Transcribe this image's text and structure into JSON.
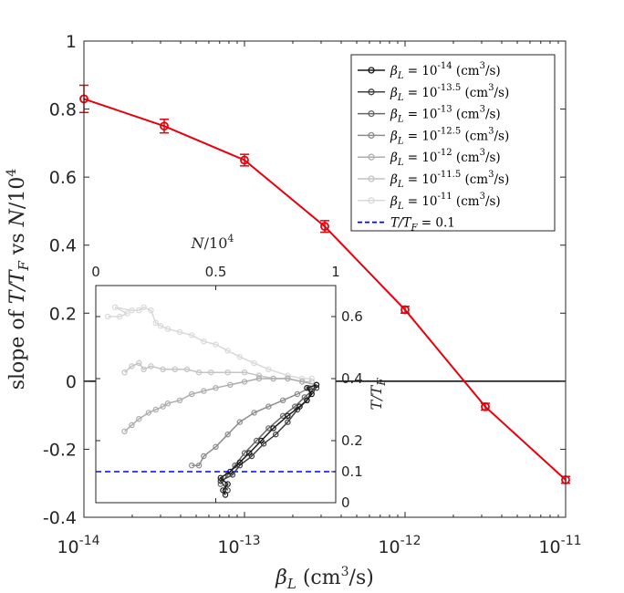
{
  "chart_data": [
    {
      "id": "main",
      "type": "line",
      "title": "",
      "xlabel": "β_L (cm³/s)",
      "ylabel": "slope of T/T_F vs N/10⁴",
      "xscale": "log",
      "xlim_exp": [
        -14,
        -11
      ],
      "ylim": [
        -0.4,
        1
      ],
      "x_ticks": [
        {
          "exp": -14,
          "label": "10",
          "sup": "-14"
        },
        {
          "exp": -13,
          "label": "10",
          "sup": "-13"
        },
        {
          "exp": -12,
          "label": "10",
          "sup": "-12"
        },
        {
          "exp": -11,
          "label": "10",
          "sup": "-11"
        }
      ],
      "y_ticks": [
        {
          "value": -0.4,
          "label": "-0.4"
        },
        {
          "value": -0.2,
          "label": "-0.2"
        },
        {
          "value": 0,
          "label": "0"
        },
        {
          "value": 0.2,
          "label": "0.2"
        },
        {
          "value": 0.4,
          "label": "0.4"
        },
        {
          "value": 0.6,
          "label": "0.6"
        },
        {
          "value": 0.8,
          "label": "0.8"
        },
        {
          "value": 1,
          "label": "1"
        }
      ],
      "zero_line": 0,
      "series": [
        {
          "name": "slope",
          "color": "#e8000b",
          "x_exp": [
            -14,
            -13.5,
            -13,
            -12.5,
            -12,
            -11.5,
            -11
          ],
          "values": [
            0.83,
            0.75,
            0.65,
            0.455,
            0.21,
            -0.075,
            -0.29
          ],
          "errors": [
            0.04,
            0.02,
            0.017,
            0.017,
            0.01,
            0.01,
            0.01
          ]
        }
      ]
    },
    {
      "id": "inset",
      "type": "line",
      "xlabel": "N/10⁴",
      "ylabel": "T/T_F",
      "xlim": [
        0,
        1
      ],
      "ylim": [
        0,
        0.7
      ],
      "x_ticks": [
        {
          "value": 0,
          "label": "0"
        },
        {
          "value": 0.5,
          "label": "0.5"
        },
        {
          "value": 1,
          "label": "1"
        }
      ],
      "y_ticks": [
        {
          "value": 0,
          "label": "0"
        },
        {
          "value": 0.1,
          "label": "0.1"
        },
        {
          "value": 0.2,
          "label": "0.2"
        },
        {
          "value": 0.4,
          "label": "0.4"
        },
        {
          "value": 0.6,
          "label": "0.6"
        }
      ],
      "reference_line": {
        "value": 0.1,
        "label": "T/T_F = 0.1",
        "color": "#0000ff"
      },
      "series": [
        {
          "name": "β_L = 10^-14 (cm³/s)",
          "color": "#1a1a1a",
          "points": [
            [
              0.54,
              0.025
            ],
            [
              0.53,
              0.04
            ],
            [
              0.55,
              0.06
            ],
            [
              0.52,
              0.08
            ],
            [
              0.56,
              0.1
            ],
            [
              0.6,
              0.13
            ],
            [
              0.64,
              0.16
            ],
            [
              0.69,
              0.2
            ],
            [
              0.74,
              0.24
            ],
            [
              0.8,
              0.28
            ],
            [
              0.85,
              0.31
            ],
            [
              0.88,
              0.33
            ],
            [
              0.9,
              0.35
            ],
            [
              0.88,
              0.37
            ],
            [
              0.92,
              0.38
            ]
          ]
        },
        {
          "name": "β_L = 10^-13.5 (cm³/s)",
          "color": "#404040",
          "points": [
            [
              0.55,
              0.04
            ],
            [
              0.52,
              0.07
            ],
            [
              0.57,
              0.09
            ],
            [
              0.6,
              0.12
            ],
            [
              0.65,
              0.15
            ],
            [
              0.7,
              0.19
            ],
            [
              0.75,
              0.22
            ],
            [
              0.8,
              0.26
            ],
            [
              0.84,
              0.3
            ],
            [
              0.88,
              0.33
            ],
            [
              0.9,
              0.36
            ],
            [
              0.92,
              0.37
            ]
          ]
        },
        {
          "name": "β_L = 10^-13 (cm³/s)",
          "color": "#666666",
          "points": [
            [
              0.52,
              0.06
            ],
            [
              0.55,
              0.09
            ],
            [
              0.58,
              0.12
            ],
            [
              0.62,
              0.16
            ],
            [
              0.67,
              0.2
            ],
            [
              0.72,
              0.24
            ],
            [
              0.78,
              0.28
            ],
            [
              0.83,
              0.31
            ],
            [
              0.87,
              0.34
            ],
            [
              0.9,
              0.36
            ],
            [
              0.92,
              0.38
            ]
          ]
        },
        {
          "name": "β_L = 10^-12.5 (cm³/s)",
          "color": "#8c8c8c",
          "points": [
            [
              0.4,
              0.12
            ],
            [
              0.43,
              0.12
            ],
            [
              0.45,
              0.15
            ],
            [
              0.5,
              0.18
            ],
            [
              0.55,
              0.22
            ],
            [
              0.6,
              0.26
            ],
            [
              0.66,
              0.29
            ],
            [
              0.72,
              0.31
            ],
            [
              0.78,
              0.33
            ],
            [
              0.84,
              0.35
            ],
            [
              0.89,
              0.37
            ],
            [
              0.92,
              0.38
            ]
          ]
        },
        {
          "name": "β_L = 10^-12 (cm³/s)",
          "color": "#adadad",
          "points": [
            [
              0.12,
              0.23
            ],
            [
              0.15,
              0.25
            ],
            [
              0.18,
              0.27
            ],
            [
              0.22,
              0.29
            ],
            [
              0.25,
              0.3
            ],
            [
              0.28,
              0.31
            ],
            [
              0.3,
              0.32
            ],
            [
              0.35,
              0.33
            ],
            [
              0.4,
              0.35
            ],
            [
              0.45,
              0.36
            ],
            [
              0.5,
              0.37
            ],
            [
              0.56,
              0.38
            ],
            [
              0.62,
              0.39
            ],
            [
              0.68,
              0.4
            ],
            [
              0.74,
              0.4
            ],
            [
              0.8,
              0.4
            ],
            [
              0.86,
              0.39
            ],
            [
              0.92,
              0.38
            ]
          ]
        },
        {
          "name": "β_L = 10^-11.5 (cm³/s)",
          "color": "#c4c4c4",
          "points": [
            [
              0.12,
              0.42
            ],
            [
              0.15,
              0.44
            ],
            [
              0.18,
              0.45
            ],
            [
              0.2,
              0.43
            ],
            [
              0.23,
              0.44
            ],
            [
              0.28,
              0.43
            ],
            [
              0.33,
              0.43
            ],
            [
              0.38,
              0.43
            ],
            [
              0.43,
              0.42
            ],
            [
              0.48,
              0.42
            ],
            [
              0.55,
              0.42
            ],
            [
              0.62,
              0.42
            ],
            [
              0.68,
              0.41
            ],
            [
              0.74,
              0.4
            ],
            [
              0.8,
              0.4
            ],
            [
              0.86,
              0.39
            ],
            [
              0.9,
              0.39
            ]
          ]
        },
        {
          "name": "β_L = 10^-11 (cm³/s)",
          "color": "#d9d9d9",
          "points": [
            [
              0.05,
              0.6
            ],
            [
              0.1,
              0.6
            ],
            [
              0.13,
              0.61
            ],
            [
              0.08,
              0.63
            ],
            [
              0.15,
              0.62
            ],
            [
              0.18,
              0.62
            ],
            [
              0.2,
              0.63
            ],
            [
              0.23,
              0.62
            ],
            [
              0.25,
              0.58
            ],
            [
              0.27,
              0.57
            ],
            [
              0.3,
              0.56
            ],
            [
              0.35,
              0.55
            ],
            [
              0.4,
              0.54
            ],
            [
              0.45,
              0.52
            ],
            [
              0.5,
              0.51
            ],
            [
              0.55,
              0.49
            ],
            [
              0.6,
              0.47
            ],
            [
              0.66,
              0.45
            ],
            [
              0.72,
              0.43
            ],
            [
              0.8,
              0.41
            ],
            [
              0.86,
              0.4
            ],
            [
              0.9,
              0.4
            ]
          ]
        }
      ]
    }
  ],
  "legend": {
    "location": "top-right",
    "entries": [
      {
        "prefix": "β",
        "sub": "L",
        "mid": " = 10",
        "sup": "-14",
        "unit_a": " (cm",
        "unit_sup": "3",
        "unit_b": "/s)",
        "color": "#1a1a1a",
        "style": "marker"
      },
      {
        "prefix": "β",
        "sub": "L",
        "mid": " = 10",
        "sup": "-13.5",
        "unit_a": " (cm",
        "unit_sup": "3",
        "unit_b": "/s)",
        "color": "#404040",
        "style": "marker"
      },
      {
        "prefix": "β",
        "sub": "L",
        "mid": " = 10",
        "sup": "-13",
        "unit_a": " (cm",
        "unit_sup": "3",
        "unit_b": "/s)",
        "color": "#666666",
        "style": "marker"
      },
      {
        "prefix": "β",
        "sub": "L",
        "mid": " = 10",
        "sup": "-12.5",
        "unit_a": " (cm",
        "unit_sup": "3",
        "unit_b": "/s)",
        "color": "#8c8c8c",
        "style": "marker"
      },
      {
        "prefix": "β",
        "sub": "L",
        "mid": " = 10",
        "sup": "-12",
        "unit_a": " (cm",
        "unit_sup": "3",
        "unit_b": "/s)",
        "color": "#adadad",
        "style": "marker"
      },
      {
        "prefix": "β",
        "sub": "L",
        "mid": " = 10",
        "sup": "-11.5",
        "unit_a": " (cm",
        "unit_sup": "3",
        "unit_b": "/s)",
        "color": "#c4c4c4",
        "style": "marker"
      },
      {
        "prefix": "β",
        "sub": "L",
        "mid": " = 10",
        "sup": "-11",
        "unit_a": " (cm",
        "unit_sup": "3",
        "unit_b": "/s)",
        "color": "#d9d9d9",
        "style": "marker"
      },
      {
        "prefix": "T/T",
        "sub": "F",
        "mid": " = 0.1",
        "sup": "",
        "unit_a": "",
        "unit_sup": "",
        "unit_b": "",
        "color": "#0000ff",
        "style": "dashed"
      }
    ]
  }
}
